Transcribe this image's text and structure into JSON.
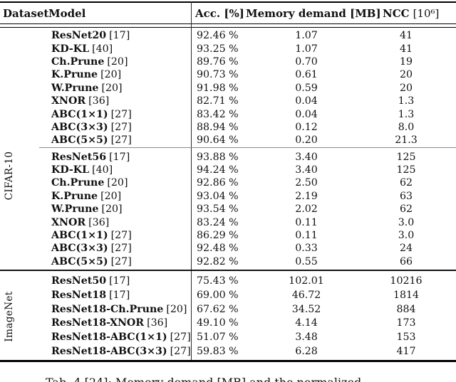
{
  "header": {
    "dataset": "Dataset",
    "model": "Model",
    "acc": "Acc. [%]",
    "memory": "Memory demand [MB]",
    "ncc": "NCC",
    "ncc_unit": "[10⁶]"
  },
  "sections": [
    {
      "dataset_label": "CIFAR-10",
      "groups": [
        {
          "rows": [
            {
              "model": "ResNet20",
              "ref": "[17]",
              "acc": "92.46 %",
              "mem": "1.07",
              "ncc": "41"
            },
            {
              "model": "KD-KL",
              "ref": "[40]",
              "acc": "93.25 %",
              "mem": "1.07",
              "ncc": "41"
            },
            {
              "model": "Ch.Prune",
              "ref": "[20]",
              "acc": "89.76 %",
              "mem": "0.70",
              "ncc": "19"
            },
            {
              "model": "K.Prune",
              "ref": "[20]",
              "acc": "90.73 %",
              "mem": "0.61",
              "ncc": "20"
            },
            {
              "model": "W.Prune",
              "ref": "[20]",
              "acc": "91.98 %",
              "mem": "0.59",
              "ncc": "20"
            },
            {
              "model": "XNOR",
              "ref": "[36]",
              "acc": "82.71 %",
              "mem": "0.04",
              "ncc": "1.3"
            },
            {
              "model": "ABC(1×1)",
              "ref": "[27]",
              "acc": "83.42 %",
              "mem": "0.04",
              "ncc": "1.3"
            },
            {
              "model": "ABC(3×3)",
              "ref": "[27]",
              "acc": "88.94 %",
              "mem": "0.12",
              "ncc": "8.0"
            },
            {
              "model": "ABC(5×5)",
              "ref": "[27]",
              "acc": "90.64 %",
              "mem": "0.20",
              "ncc": "21.3"
            }
          ]
        },
        {
          "rows": [
            {
              "model": "ResNet56",
              "ref": "[17]",
              "acc": "93.88 %",
              "mem": "3.40",
              "ncc": "125"
            },
            {
              "model": "KD-KL",
              "ref": "[40]",
              "acc": "94.24 %",
              "mem": "3.40",
              "ncc": "125"
            },
            {
              "model": "Ch.Prune",
              "ref": "[20]",
              "acc": "92.86 %",
              "mem": "2.50",
              "ncc": "62"
            },
            {
              "model": "K.Prune",
              "ref": "[20]",
              "acc": "93.04 %",
              "mem": "2.19",
              "ncc": "63"
            },
            {
              "model": "W.Prune",
              "ref": "[20]",
              "acc": "93.54 %",
              "mem": "2.02",
              "ncc": "62"
            },
            {
              "model": "XNOR",
              "ref": "[36]",
              "acc": "83.24 %",
              "mem": "0.11",
              "ncc": "3.0"
            },
            {
              "model": "ABC(1×1)",
              "ref": "[27]",
              "acc": "86.29 %",
              "mem": "0.11",
              "ncc": "3.0"
            },
            {
              "model": "ABC(3×3)",
              "ref": "[27]",
              "acc": "92.48 %",
              "mem": "0.33",
              "ncc": "24"
            },
            {
              "model": "ABC(5×5)",
              "ref": "[27]",
              "acc": "92.82 %",
              "mem": "0.55",
              "ncc": "66"
            }
          ]
        }
      ]
    },
    {
      "dataset_label": "ImageNet",
      "groups": [
        {
          "rows": [
            {
              "model": "ResNet50",
              "ref": "[17]",
              "acc": "75.43 %",
              "mem": "102.01",
              "ncc": "10216"
            },
            {
              "model": "ResNet18",
              "ref": "[17]",
              "acc": "69.00 %",
              "mem": "46.72",
              "ncc": "1814"
            },
            {
              "model": "ResNet18-Ch.Prune",
              "ref": "[20]",
              "acc": "67.62 %",
              "mem": "34.52",
              "ncc": "884"
            },
            {
              "model": "ResNet18-XNOR",
              "ref": "[36]",
              "acc": "49.10 %",
              "mem": "4.14",
              "ncc": "173"
            },
            {
              "model": "ResNet18-ABC(1×1)",
              "ref": "[27]",
              "acc": "51.07 %",
              "mem": "3.48",
              "ncc": "153"
            },
            {
              "model": "ResNet18-ABC(3×3)",
              "ref": "[27]",
              "acc": "59.83 %",
              "mem": "6.28",
              "ncc": "417"
            }
          ]
        }
      ]
    }
  ],
  "caption": {
    "fragment": "Tab. 4 [24]: Memory demand [MB] and the normalized"
  }
}
